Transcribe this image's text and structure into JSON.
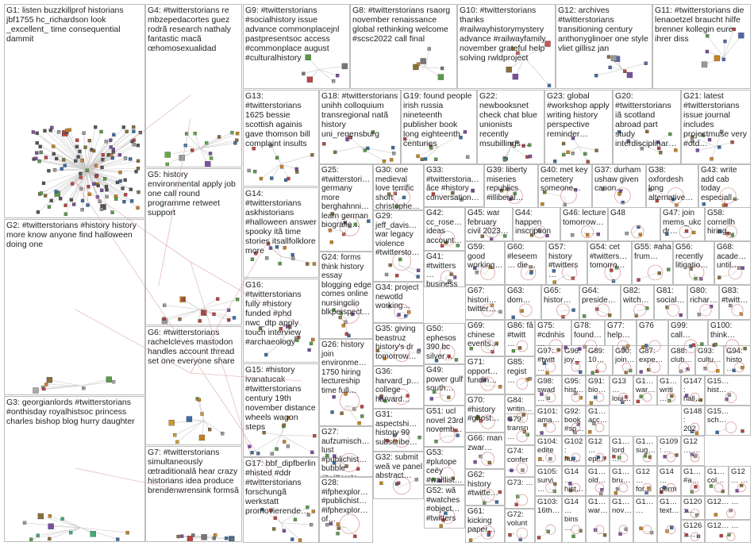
{
  "groups": [
    {
      "id": "G1",
      "text": "G1: listen buzzkillprof historians jbf1755 hc_richardson look _excellent_ time consequential dammit"
    },
    {
      "id": "G2",
      "text": "G2: #twitterstorians #history history more know anyone find halloween doing one"
    },
    {
      "id": "G3",
      "text": "G3: georgianlords #twitterstorians #onthisday royalhistsoc princess charles bishop blog hurry daughter"
    },
    {
      "id": "G4",
      "text": "G4: #twitterstorians re mbzepedacortes guez rodrã research nathaly fantastic macã œhomosexualidad"
    },
    {
      "id": "G5",
      "text": "G5: history environmental apply job one call round programme retweet support"
    },
    {
      "id": "G6",
      "text": "G6: #twitterstorians rachelcleves mastodon handles account thread set one everyone share"
    },
    {
      "id": "G7",
      "text": "G7: #twitterstorians simultaneously œtraditionalâ hear crazy historians idea produce brendenwrensink formsâ"
    },
    {
      "id": "G9",
      "text": "G9: #twitterstorians #socialhistory issue advance commonplacejnl pastpresentsoc access #commonplace august #culturalhistory"
    },
    {
      "id": "G8",
      "text": "G8: #twitterstorians rsaorg november renaissance global rethinking welcome #scsc2022 call final"
    },
    {
      "id": "G10",
      "text": "G10: #twitterstorians thanks #railwayhistorymystery advance #railwayfamily november grateful help solving rwldproject"
    },
    {
      "id": "G12",
      "text": "G12: archives #twitterstorians transitioning century anthonyglinoer one style vliet gillisz jan"
    },
    {
      "id": "G11",
      "text": "G11: #twitterstorians die lenaoetzel braucht hilfe brenner kollegin eure ihrer diss"
    },
    {
      "id": "G13",
      "text": "G13: #twitterstorians 1625 bessie scottish againis gave thomson bill complaint insults"
    },
    {
      "id": "G18",
      "text": "G18: #twitterstorians unihh colloquium transregional natã history uni_regensburg"
    },
    {
      "id": "G19",
      "text": "G19: found people irish russia nineteenth publisher book long eighteenth centuries"
    },
    {
      "id": "G22",
      "text": "G22: newbooksnet check chat blue unionists recently msubillings…"
    },
    {
      "id": "G23",
      "text": "G23: global #workshop apply writing history perspective reminder…"
    },
    {
      "id": "G20",
      "text": "G20: #twitterstorians iã scotland abroad part study interdisciplinar…"
    },
    {
      "id": "G21",
      "text": "G21: latest #twitterstorians issue journal includes projectmuse very #otd…"
    },
    {
      "id": "G14",
      "text": "G14: #twitterstorians askhistorians #halloween answer spooky itã time stories itsallfolklore more"
    },
    {
      "id": "G25",
      "text": "G25: #twitterstori… germany more berghahnni… learn german biografie…"
    },
    {
      "id": "G30",
      "text": "G30: one medieval love terrific short christophe…"
    },
    {
      "id": "G33",
      "text": "G33: #twitterstoria… ãce #history conversation…"
    },
    {
      "id": "G39",
      "text": "G39: liberty miseries republics #illiberal… "
    },
    {
      "id": "G40",
      "text": "G40: met key cemetery someone…"
    },
    {
      "id": "G37",
      "text": "G37: durham ushaw given canon…"
    },
    {
      "id": "G38",
      "text": "G38: oxfordesh long alternative…"
    },
    {
      "id": "G43",
      "text": "G43: write add cab today especiall…"
    },
    {
      "id": "G29",
      "text": "G29: jeff_davis… war legacy violence #twittersto…"
    },
    {
      "id": "G42",
      "text": "G42: cc_rose… ideas account…"
    },
    {
      "id": "G45",
      "text": "G45: war february civil 2023…"
    },
    {
      "id": "G44",
      "text": "G44: happen inscription…"
    },
    {
      "id": "G46",
      "text": "G46: lecture tomorrow…"
    },
    {
      "id": "G48",
      "text": "G48"
    },
    {
      "id": "G47",
      "text": "G47: join mems_ukc dr…"
    },
    {
      "id": "G58",
      "text": "G58: cornellh hiring…"
    },
    {
      "id": "G16",
      "text": "G16: #twitterstorians fully #history funded #phd nwc_dtp apply touch interview #archaeology"
    },
    {
      "id": "G24",
      "text": "G24: forms think history essay blogging edge comes online nursingclio blkperspect…"
    },
    {
      "id": "G41",
      "text": "G41: #twitters… business history…"
    },
    {
      "id": "G59",
      "text": "G59: good working…"
    },
    {
      "id": "G60",
      "text": "G60: #leseem… die…"
    },
    {
      "id": "G57",
      "text": "G57: history #twitters…"
    },
    {
      "id": "G54",
      "text": "G54: cet #twitters… tomorro…"
    },
    {
      "id": "G55",
      "text": "G55: #aha frum…"
    },
    {
      "id": "G56",
      "text": "G56: recently litigatio…"
    },
    {
      "id": "G68",
      "text": "G68: acade… until…"
    },
    {
      "id": "G34",
      "text": "G34: project newotld working…"
    },
    {
      "id": "G67",
      "text": "G67: histori… twitter…"
    },
    {
      "id": "G63",
      "text": "G63: dom…"
    },
    {
      "id": "G65",
      "text": "G65: histor…"
    },
    {
      "id": "G64",
      "text": "G64: preside…"
    },
    {
      "id": "G82",
      "text": "G82: witch…"
    },
    {
      "id": "G81",
      "text": "G81: social…"
    },
    {
      "id": "G80",
      "text": "G80: richar…"
    },
    {
      "id": "G83",
      "text": "G83: #twitt…"
    },
    {
      "id": "G26",
      "text": "G26: history join environme… 1750 hiring lectureship time full…"
    },
    {
      "id": "G50",
      "text": "G50: ephesos 390 bc silver…"
    },
    {
      "id": "G69",
      "text": "G69: chinese events…"
    },
    {
      "id": "G86",
      "text": "G86: fã #twitt…"
    },
    {
      "id": "G75",
      "text": "G75: #cdnhis…"
    },
    {
      "id": "G78",
      "text": "G78: found…"
    },
    {
      "id": "G77",
      "text": "G77: help…"
    },
    {
      "id": "G76",
      "text": "G76"
    },
    {
      "id": "G99",
      "text": "G99: call…"
    },
    {
      "id": "G100",
      "text": "G100: think…"
    },
    {
      "id": "G15",
      "text": "G15: #history ivanatucak #twitterstorians century 19th november distance wheels wagon steps"
    },
    {
      "id": "G35",
      "text": "G35: giving beastruz history's dr tomorrow…"
    },
    {
      "id": "G71",
      "text": "G71: opport… fundin…"
    },
    {
      "id": "G85",
      "text": "G85: regist…"
    },
    {
      "id": "G97",
      "text": "G97: #twitt…"
    },
    {
      "id": "G96",
      "text": "G96: joy…"
    },
    {
      "id": "G89",
      "text": "G89: 10…"
    },
    {
      "id": "G90",
      "text": "G90: join…"
    },
    {
      "id": "G87",
      "text": "G87: expe…"
    },
    {
      "id": "G88",
      "text": "G88: club…"
    },
    {
      "id": "G93",
      "text": "G93: cultu…"
    },
    {
      "id": "G94",
      "text": "G94: histo…"
    },
    {
      "id": "G27",
      "text": "G27: aufzumisch… lust #publichist… bubble #twittersto…"
    },
    {
      "id": "G36",
      "text": "G36: harvard_p… college harvard…"
    },
    {
      "id": "G49",
      "text": "G49: power gulf south…"
    },
    {
      "id": "G84",
      "text": "G84: writin…"
    },
    {
      "id": "G98",
      "text": "G98: swad…"
    },
    {
      "id": "G95",
      "text": "G95: hist…"
    },
    {
      "id": "G91",
      "text": "G91: bio…"
    },
    {
      "id": "G13b",
      "text": "G13… loui…"
    },
    {
      "id": "G1c",
      "text": "G1… war…"
    },
    {
      "id": "G1d",
      "text": "G1… writi…"
    },
    {
      "id": "G147",
      "text": "G147: hall…"
    },
    {
      "id": "G15b",
      "text": "G15… hist…"
    },
    {
      "id": "G17",
      "text": "G17: bbf_dipfberlin #histed #ddr #twitterstorians forschungã werkstatt promovierende…"
    },
    {
      "id": "G31",
      "text": "G31: aspectshi… history 99 subscribe…"
    },
    {
      "id": "G51",
      "text": "G51: ucl novel 23rd novemb…"
    },
    {
      "id": "G70",
      "text": "G70: #history #ghost…"
    },
    {
      "id": "G79",
      "text": "G79: transn…"
    },
    {
      "id": "G101",
      "text": "G101: ama…"
    },
    {
      "id": "G92",
      "text": "G92: book #sp…"
    },
    {
      "id": "G1e",
      "text": "G1… acc…"
    },
    {
      "id": "G148",
      "text": "G148: 202…"
    },
    {
      "id": "G15c",
      "text": "G15… sch…"
    },
    {
      "id": "G28",
      "text": "G28: #ifphexplor… #publichist… #ifphexplor… of…"
    },
    {
      "id": "G53",
      "text": "G53: #plutope ceёy #waitlist…"
    },
    {
      "id": "G66",
      "text": "G66: man zwar…"
    },
    {
      "id": "G74",
      "text": "G74: confer…"
    },
    {
      "id": "G104",
      "text": "G104: edite…"
    },
    {
      "id": "G102",
      "text": "G102: hu…"
    },
    {
      "id": "G12c",
      "text": "G12… epi…"
    },
    {
      "id": "G1f",
      "text": "G1… lord…"
    },
    {
      "id": "G1g",
      "text": "G1… sug…"
    },
    {
      "id": "G109",
      "text": "G109: …"
    },
    {
      "id": "G12d",
      "text": "G12… …"
    },
    {
      "id": "G32",
      "text": "G32: submit weã ve panel abstract…"
    },
    {
      "id": "G52",
      "text": "G52: wã #watches #object… #twitters…"
    },
    {
      "id": "G62",
      "text": "G62: history #twitte…"
    },
    {
      "id": "G73",
      "text": "G73: …"
    },
    {
      "id": "G105",
      "text": "G105: survi…"
    },
    {
      "id": "G14b",
      "text": "G14… hist…"
    },
    {
      "id": "G1h",
      "text": "G1… old…"
    },
    {
      "id": "G1i",
      "text": "G1… bru…"
    },
    {
      "id": "G12e",
      "text": "G12… for…"
    },
    {
      "id": "G14c",
      "text": "G14… germ…"
    },
    {
      "id": "G1j",
      "text": "G1… #a…"
    },
    {
      "id": "G1k",
      "text": "G1… col…"
    },
    {
      "id": "G12f",
      "text": "G12… …"
    },
    {
      "id": "G120",
      "text": "G120: …"
    },
    {
      "id": "G12g",
      "text": "G12… …"
    },
    {
      "id": "G61",
      "text": "G61: kicking paper…"
    },
    {
      "id": "G72",
      "text": "G72: volunt…"
    },
    {
      "id": "G103",
      "text": "G103: 16th…"
    },
    {
      "id": "G14d",
      "text": "G14… bins…"
    },
    {
      "id": "G1l",
      "text": "G1… war…"
    },
    {
      "id": "G1m",
      "text": "G1… nov…"
    },
    {
      "id": "G1n",
      "text": "G1… …"
    },
    {
      "id": "G1o",
      "text": "G1… text…"
    },
    {
      "id": "G126",
      "text": "G126: …"
    },
    {
      "id": "G12h",
      "text": "G12… …"
    }
  ]
}
